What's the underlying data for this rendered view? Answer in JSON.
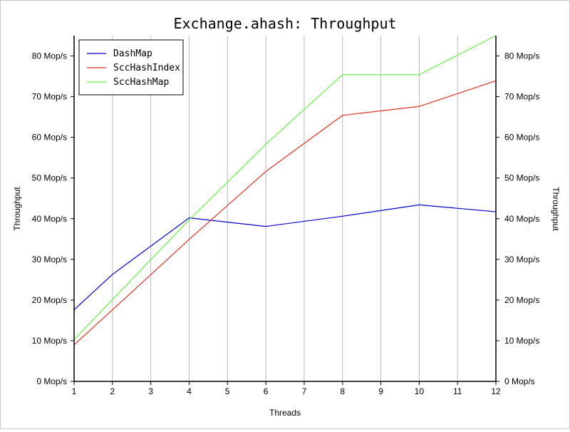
{
  "chart_data": {
    "type": "line",
    "title": "Exchange.ahash: Throughput",
    "xlabel": "Threads",
    "ylabel": "Throughput",
    "ylabel_right": "Throughput",
    "x": [
      1,
      2,
      4,
      6,
      8,
      10,
      12
    ],
    "xticks": [
      1,
      2,
      3,
      4,
      5,
      6,
      7,
      8,
      9,
      10,
      11,
      12
    ],
    "xlim": [
      1,
      12
    ],
    "ylim": [
      0,
      85
    ],
    "yticks": [
      0,
      10,
      20,
      30,
      40,
      50,
      60,
      70,
      80
    ],
    "ytick_labels": [
      "0 Mop/s",
      "10 Mop/s",
      "20 Mop/s",
      "30 Mop/s",
      "40 Mop/s",
      "50 Mop/s",
      "60 Mop/s",
      "70 Mop/s",
      "80 Mop/s"
    ],
    "grid": "vertical",
    "legend_position": "top-left",
    "series": [
      {
        "name": "DashMap",
        "color": "#0000cc",
        "values": [
          17.6,
          26.3,
          40.2,
          38.1,
          40.6,
          43.4,
          41.7
        ]
      },
      {
        "name": "SccHashIndex",
        "color": "#dd3322",
        "values": [
          9.0,
          17.6,
          34.9,
          51.6,
          65.4,
          67.6,
          73.9
        ]
      },
      {
        "name": "SccHashMap",
        "color": "#66ee44",
        "values": [
          10.3,
          20.1,
          39.7,
          58.3,
          75.4,
          75.4,
          85.0
        ]
      }
    ]
  }
}
